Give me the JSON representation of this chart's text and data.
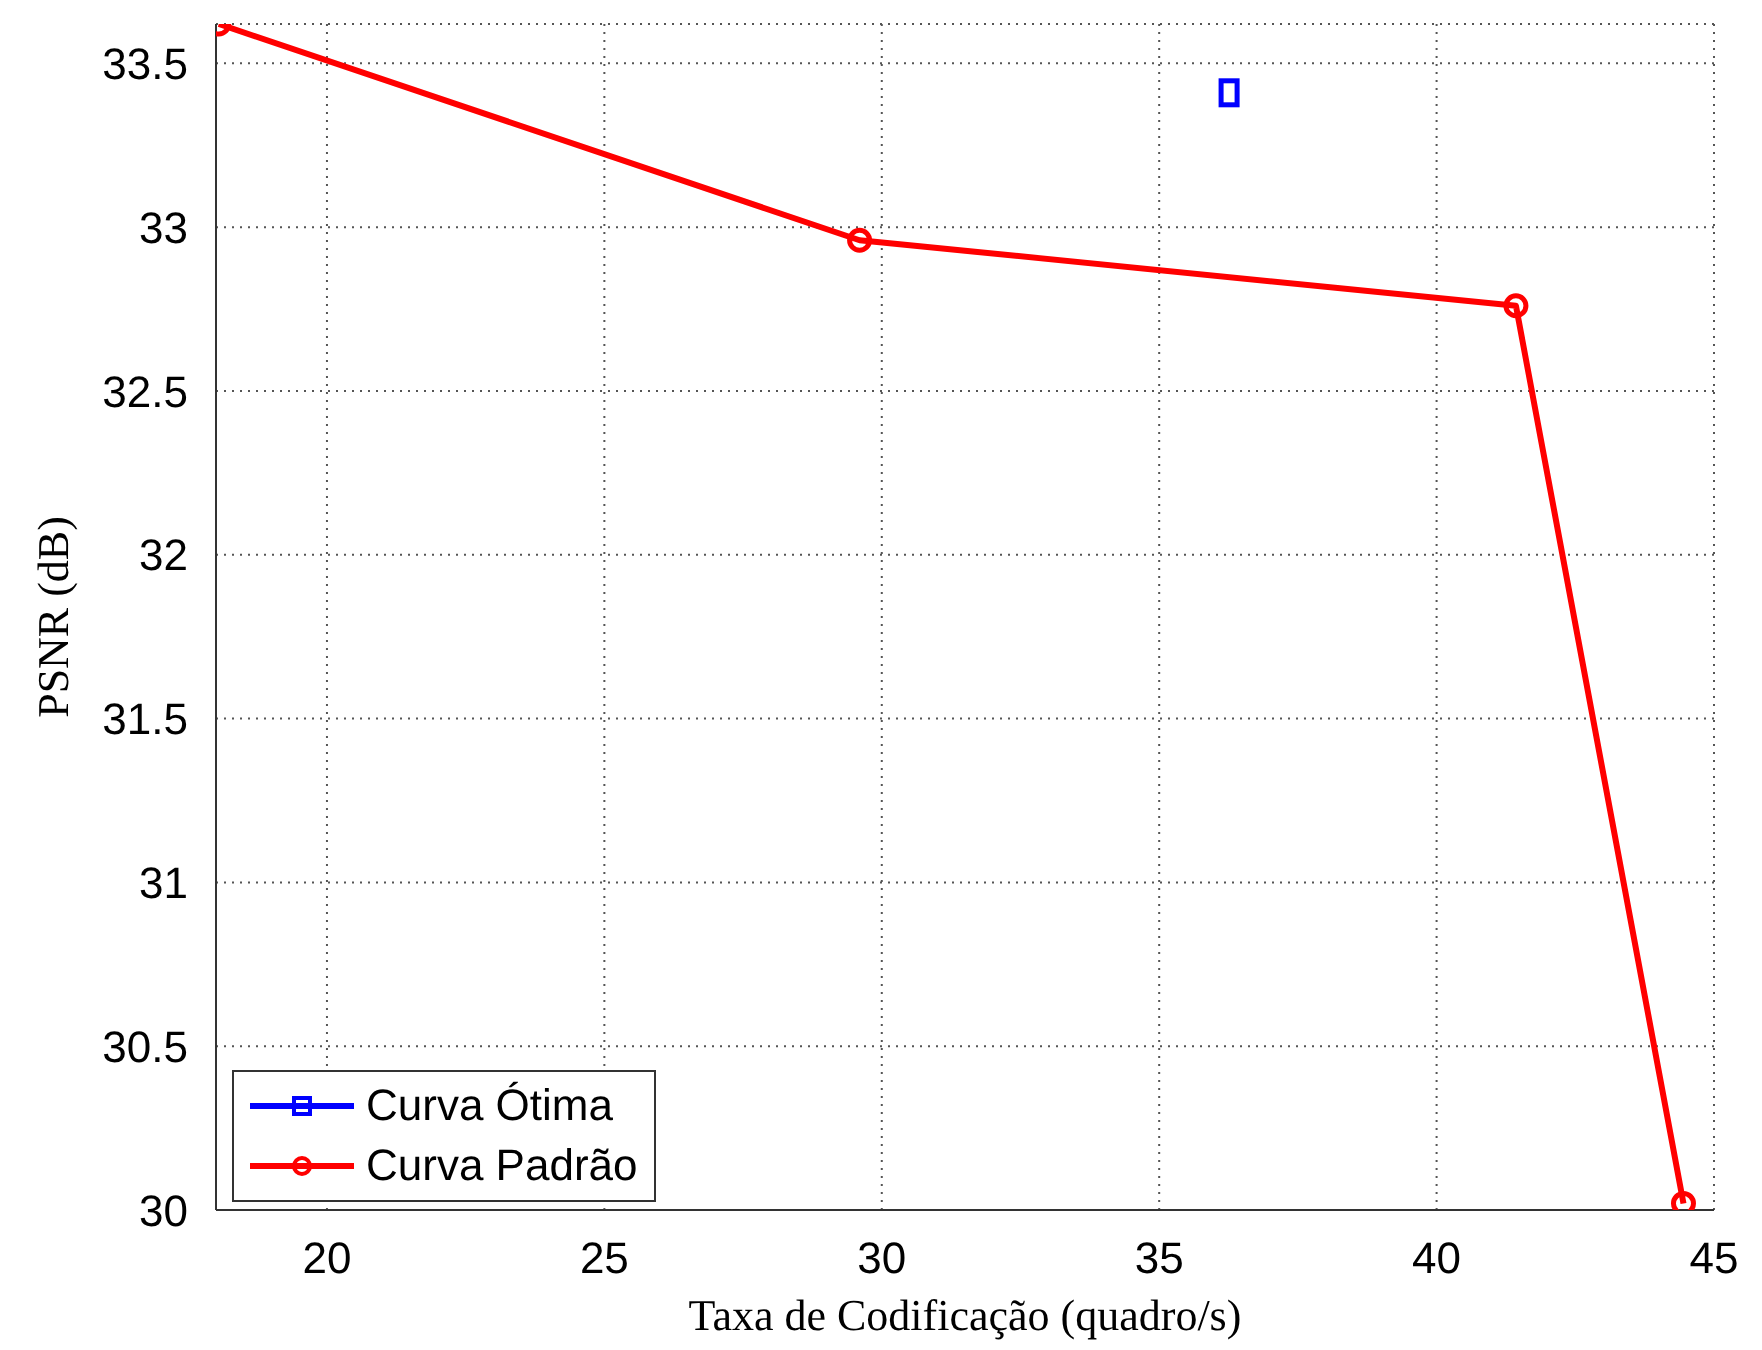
{
  "chart_data": {
    "type": "line",
    "xlabel": "Taxa de Codificação (quadro/s)",
    "ylabel": "PSNR (dB)",
    "xlim": [
      18,
      45
    ],
    "xticks": [
      20,
      25,
      30,
      35,
      40,
      45
    ],
    "ylim": [
      30,
      33.62
    ],
    "yticks": [
      30,
      30.5,
      31,
      31.5,
      32,
      32.5,
      33,
      33.5
    ],
    "grid": true,
    "legend": "bottom left",
    "line_style": "solid",
    "series": [
      {
        "name": "Curva Ótima",
        "color": "#0000ff",
        "marker": "square",
        "x": [
          36.26
        ],
        "values": [
          33.41
        ]
      },
      {
        "name": "Curva Padrão",
        "color": "#ff0000",
        "marker": "circle",
        "x": [
          18.05,
          29.6,
          41.43,
          44.45
        ],
        "values": [
          33.62,
          32.96,
          32.76,
          30.02
        ]
      }
    ]
  }
}
